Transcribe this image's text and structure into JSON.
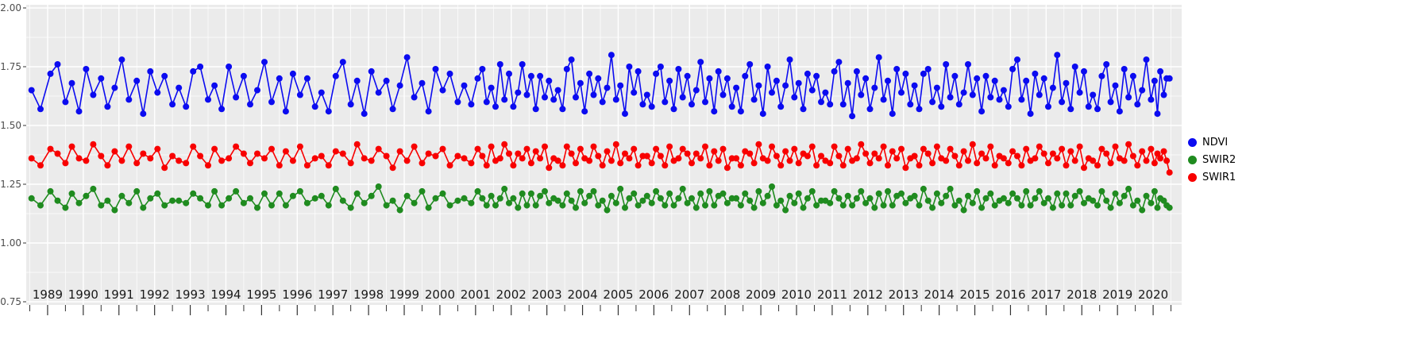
{
  "figure": {
    "background": "#ffffff",
    "panel_background": "#ebebeb",
    "grid_color": "#ffffff",
    "axis_label_color": "#4d4d4d",
    "x_label_color": "#1a1a1a",
    "tick_color": "#333333"
  },
  "legend": {
    "items": [
      {
        "label": "NDVI",
        "color": "#0b0bf0"
      },
      {
        "label": "SWIR2",
        "color": "#1f8b1f"
      },
      {
        "label": "SWIR1",
        "color": "#f80000"
      }
    ]
  },
  "chart_data": {
    "type": "line",
    "title": "",
    "xlabel": "",
    "ylabel": "",
    "grid": true,
    "legend_position": "right",
    "x_range": [
      1988.4,
      2020.8
    ],
    "y_range": [
      0.75,
      2.0
    ],
    "x_ticks": [
      1989,
      1990,
      1991,
      1992,
      1993,
      1994,
      1995,
      1996,
      1997,
      1998,
      1999,
      2000,
      2001,
      2002,
      2003,
      2004,
      2005,
      2006,
      2007,
      2008,
      2009,
      2010,
      2011,
      2012,
      2013,
      2014,
      2015,
      2016,
      2017,
      2018,
      2019,
      2020
    ],
    "y_ticks": [
      2.0,
      1.75,
      1.5,
      1.25,
      1.0,
      0.75
    ],
    "y_tick_labels": [
      "2.00",
      "1.75",
      "1.50",
      "1.25",
      "1.00",
      "0.75"
    ],
    "x": [
      1988.55,
      1988.8,
      1989.08,
      1989.28,
      1989.5,
      1989.68,
      1989.88,
      1990.08,
      1990.28,
      1990.5,
      1990.68,
      1990.88,
      1991.08,
      1991.28,
      1991.5,
      1991.68,
      1991.88,
      1992.08,
      1992.28,
      1992.5,
      1992.68,
      1992.88,
      1993.08,
      1993.28,
      1993.5,
      1993.68,
      1993.88,
      1994.08,
      1994.28,
      1994.5,
      1994.68,
      1994.88,
      1995.08,
      1995.28,
      1995.5,
      1995.68,
      1995.88,
      1996.08,
      1996.28,
      1996.5,
      1996.68,
      1996.88,
      1997.08,
      1997.28,
      1997.5,
      1997.68,
      1997.88,
      1998.08,
      1998.28,
      1998.5,
      1998.68,
      1998.88,
      1999.08,
      1999.28,
      1999.5,
      1999.68,
      1999.88,
      2000.08,
      2000.28,
      2000.5,
      2000.68,
      2000.88,
      2001.06,
      2001.19,
      2001.31,
      2001.44,
      2001.56,
      2001.69,
      2001.81,
      2001.94,
      2002.06,
      2002.19,
      2002.31,
      2002.44,
      2002.56,
      2002.69,
      2002.81,
      2002.94,
      2003.06,
      2003.19,
      2003.31,
      2003.44,
      2003.56,
      2003.69,
      2003.81,
      2003.94,
      2004.06,
      2004.19,
      2004.31,
      2004.44,
      2004.56,
      2004.69,
      2004.81,
      2004.94,
      2005.06,
      2005.19,
      2005.31,
      2005.44,
      2005.56,
      2005.69,
      2005.81,
      2005.94,
      2006.06,
      2006.19,
      2006.31,
      2006.44,
      2006.56,
      2006.69,
      2006.81,
      2006.94,
      2007.06,
      2007.19,
      2007.31,
      2007.44,
      2007.56,
      2007.69,
      2007.81,
      2007.94,
      2008.06,
      2008.19,
      2008.31,
      2008.44,
      2008.56,
      2008.69,
      2008.81,
      2008.94,
      2009.06,
      2009.19,
      2009.31,
      2009.44,
      2009.56,
      2009.69,
      2009.81,
      2009.94,
      2010.06,
      2010.19,
      2010.31,
      2010.44,
      2010.56,
      2010.69,
      2010.81,
      2010.94,
      2011.06,
      2011.19,
      2011.31,
      2011.44,
      2011.56,
      2011.69,
      2011.81,
      2011.94,
      2012.06,
      2012.19,
      2012.31,
      2012.44,
      2012.56,
      2012.69,
      2012.81,
      2012.94,
      2013.06,
      2013.19,
      2013.31,
      2013.44,
      2013.56,
      2013.69,
      2013.81,
      2013.94,
      2014.06,
      2014.19,
      2014.31,
      2014.44,
      2014.56,
      2014.69,
      2014.81,
      2014.94,
      2015.06,
      2015.19,
      2015.31,
      2015.44,
      2015.56,
      2015.69,
      2015.81,
      2015.94,
      2016.06,
      2016.19,
      2016.31,
      2016.44,
      2016.56,
      2016.69,
      2016.81,
      2016.94,
      2017.06,
      2017.19,
      2017.31,
      2017.44,
      2017.56,
      2017.69,
      2017.81,
      2017.94,
      2018.06,
      2018.19,
      2018.31,
      2018.44,
      2018.56,
      2018.69,
      2018.81,
      2018.94,
      2019.06,
      2019.19,
      2019.31,
      2019.44,
      2019.56,
      2019.69,
      2019.81,
      2019.94,
      2020.04,
      2020.12,
      2020.2,
      2020.3,
      2020.38,
      2020.46
    ],
    "series": [
      {
        "name": "NDVI",
        "color": "#0b0bf0",
        "values": [
          1.65,
          1.57,
          1.72,
          1.76,
          1.6,
          1.68,
          1.56,
          1.74,
          1.63,
          1.7,
          1.58,
          1.66,
          1.78,
          1.61,
          1.69,
          1.55,
          1.73,
          1.64,
          1.71,
          1.59,
          1.66,
          1.58,
          1.73,
          1.75,
          1.61,
          1.67,
          1.57,
          1.75,
          1.62,
          1.71,
          1.59,
          1.65,
          1.77,
          1.6,
          1.7,
          1.56,
          1.72,
          1.63,
          1.7,
          1.58,
          1.64,
          1.56,
          1.71,
          1.77,
          1.59,
          1.69,
          1.55,
          1.73,
          1.64,
          1.69,
          1.57,
          1.67,
          1.79,
          1.62,
          1.68,
          1.56,
          1.74,
          1.65,
          1.72,
          1.6,
          1.67,
          1.59,
          1.7,
          1.74,
          1.6,
          1.66,
          1.58,
          1.76,
          1.61,
          1.72,
          1.58,
          1.64,
          1.76,
          1.63,
          1.71,
          1.57,
          1.71,
          1.62,
          1.69,
          1.61,
          1.65,
          1.57,
          1.74,
          1.78,
          1.62,
          1.68,
          1.56,
          1.72,
          1.63,
          1.7,
          1.6,
          1.66,
          1.8,
          1.61,
          1.67,
          1.55,
          1.75,
          1.64,
          1.73,
          1.59,
          1.63,
          1.58,
          1.72,
          1.75,
          1.6,
          1.69,
          1.57,
          1.74,
          1.62,
          1.71,
          1.59,
          1.65,
          1.77,
          1.6,
          1.7,
          1.56,
          1.73,
          1.63,
          1.7,
          1.58,
          1.66,
          1.56,
          1.71,
          1.76,
          1.61,
          1.67,
          1.55,
          1.75,
          1.64,
          1.69,
          1.58,
          1.67,
          1.78,
          1.62,
          1.68,
          1.57,
          1.72,
          1.65,
          1.71,
          1.6,
          1.64,
          1.59,
          1.73,
          1.77,
          1.59,
          1.68,
          1.54,
          1.73,
          1.63,
          1.7,
          1.57,
          1.66,
          1.79,
          1.61,
          1.69,
          1.55,
          1.74,
          1.64,
          1.72,
          1.59,
          1.67,
          1.57,
          1.72,
          1.74,
          1.6,
          1.66,
          1.58,
          1.76,
          1.62,
          1.71,
          1.59,
          1.64,
          1.76,
          1.63,
          1.7,
          1.56,
          1.71,
          1.62,
          1.69,
          1.61,
          1.65,
          1.58,
          1.74,
          1.78,
          1.61,
          1.69,
          1.55,
          1.72,
          1.63,
          1.7,
          1.58,
          1.66,
          1.8,
          1.6,
          1.68,
          1.57,
          1.75,
          1.64,
          1.73,
          1.58,
          1.63,
          1.57,
          1.71,
          1.76,
          1.6,
          1.67,
          1.56,
          1.74,
          1.62,
          1.71,
          1.59,
          1.65,
          1.78,
          1.61,
          1.69,
          1.55,
          1.73,
          1.63,
          1.7,
          1.7
        ]
      },
      {
        "name": "SWIR2",
        "color": "#1f8b1f",
        "values": [
          1.19,
          1.16,
          1.22,
          1.18,
          1.15,
          1.21,
          1.17,
          1.2,
          1.23,
          1.16,
          1.18,
          1.14,
          1.2,
          1.17,
          1.22,
          1.15,
          1.19,
          1.21,
          1.16,
          1.18,
          1.18,
          1.17,
          1.21,
          1.19,
          1.16,
          1.22,
          1.16,
          1.19,
          1.22,
          1.17,
          1.19,
          1.15,
          1.21,
          1.16,
          1.21,
          1.16,
          1.2,
          1.22,
          1.17,
          1.19,
          1.2,
          1.16,
          1.23,
          1.18,
          1.15,
          1.21,
          1.17,
          1.2,
          1.24,
          1.16,
          1.18,
          1.14,
          1.2,
          1.17,
          1.22,
          1.15,
          1.19,
          1.21,
          1.16,
          1.18,
          1.19,
          1.17,
          1.22,
          1.19,
          1.16,
          1.2,
          1.16,
          1.19,
          1.23,
          1.17,
          1.19,
          1.15,
          1.21,
          1.16,
          1.21,
          1.16,
          1.2,
          1.22,
          1.17,
          1.19,
          1.18,
          1.16,
          1.21,
          1.18,
          1.15,
          1.22,
          1.17,
          1.2,
          1.22,
          1.16,
          1.18,
          1.14,
          1.2,
          1.17,
          1.23,
          1.15,
          1.19,
          1.21,
          1.16,
          1.18,
          1.2,
          1.17,
          1.22,
          1.19,
          1.16,
          1.21,
          1.16,
          1.19,
          1.23,
          1.17,
          1.19,
          1.15,
          1.21,
          1.16,
          1.22,
          1.16,
          1.2,
          1.21,
          1.17,
          1.19,
          1.19,
          1.16,
          1.21,
          1.18,
          1.15,
          1.22,
          1.17,
          1.2,
          1.24,
          1.16,
          1.18,
          1.14,
          1.2,
          1.17,
          1.21,
          1.15,
          1.19,
          1.22,
          1.16,
          1.18,
          1.18,
          1.17,
          1.22,
          1.19,
          1.16,
          1.2,
          1.16,
          1.19,
          1.22,
          1.17,
          1.19,
          1.15,
          1.21,
          1.16,
          1.22,
          1.16,
          1.2,
          1.21,
          1.17,
          1.19,
          1.2,
          1.16,
          1.23,
          1.18,
          1.15,
          1.21,
          1.17,
          1.2,
          1.23,
          1.16,
          1.18,
          1.14,
          1.2,
          1.17,
          1.22,
          1.15,
          1.19,
          1.21,
          1.16,
          1.18,
          1.19,
          1.17,
          1.21,
          1.19,
          1.16,
          1.22,
          1.16,
          1.19,
          1.22,
          1.17,
          1.19,
          1.15,
          1.21,
          1.16,
          1.21,
          1.16,
          1.2,
          1.22,
          1.17,
          1.19,
          1.18,
          1.16,
          1.22,
          1.18,
          1.15,
          1.21,
          1.17,
          1.2,
          1.23,
          1.16,
          1.18,
          1.14,
          1.2,
          1.17,
          1.22,
          1.15,
          1.19,
          1.18,
          1.16,
          1.15
        ]
      },
      {
        "name": "SWIR1",
        "color": "#f80000",
        "values": [
          1.36,
          1.33,
          1.4,
          1.38,
          1.34,
          1.41,
          1.36,
          1.35,
          1.42,
          1.37,
          1.33,
          1.39,
          1.35,
          1.41,
          1.34,
          1.38,
          1.36,
          1.4,
          1.32,
          1.37,
          1.35,
          1.34,
          1.41,
          1.37,
          1.33,
          1.4,
          1.35,
          1.36,
          1.41,
          1.38,
          1.34,
          1.38,
          1.36,
          1.4,
          1.33,
          1.39,
          1.35,
          1.41,
          1.33,
          1.36,
          1.37,
          1.33,
          1.39,
          1.38,
          1.34,
          1.42,
          1.36,
          1.35,
          1.4,
          1.37,
          1.32,
          1.39,
          1.35,
          1.41,
          1.34,
          1.38,
          1.37,
          1.4,
          1.33,
          1.37,
          1.36,
          1.34,
          1.4,
          1.37,
          1.33,
          1.41,
          1.35,
          1.36,
          1.42,
          1.38,
          1.33,
          1.38,
          1.36,
          1.4,
          1.34,
          1.39,
          1.36,
          1.41,
          1.32,
          1.36,
          1.35,
          1.33,
          1.41,
          1.38,
          1.34,
          1.4,
          1.36,
          1.35,
          1.41,
          1.37,
          1.33,
          1.39,
          1.35,
          1.42,
          1.34,
          1.38,
          1.36,
          1.4,
          1.33,
          1.37,
          1.37,
          1.34,
          1.4,
          1.37,
          1.33,
          1.41,
          1.35,
          1.36,
          1.4,
          1.38,
          1.34,
          1.38,
          1.36,
          1.41,
          1.33,
          1.39,
          1.35,
          1.4,
          1.32,
          1.36,
          1.36,
          1.33,
          1.39,
          1.38,
          1.34,
          1.42,
          1.36,
          1.35,
          1.41,
          1.37,
          1.33,
          1.39,
          1.35,
          1.4,
          1.34,
          1.38,
          1.37,
          1.41,
          1.33,
          1.37,
          1.35,
          1.34,
          1.41,
          1.37,
          1.33,
          1.4,
          1.35,
          1.36,
          1.42,
          1.38,
          1.34,
          1.38,
          1.36,
          1.41,
          1.33,
          1.39,
          1.36,
          1.4,
          1.32,
          1.36,
          1.37,
          1.33,
          1.4,
          1.38,
          1.34,
          1.41,
          1.36,
          1.35,
          1.4,
          1.37,
          1.33,
          1.39,
          1.35,
          1.42,
          1.34,
          1.38,
          1.36,
          1.41,
          1.33,
          1.37,
          1.36,
          1.34,
          1.39,
          1.37,
          1.33,
          1.4,
          1.35,
          1.36,
          1.41,
          1.38,
          1.34,
          1.38,
          1.36,
          1.4,
          1.33,
          1.39,
          1.35,
          1.41,
          1.32,
          1.36,
          1.35,
          1.33,
          1.4,
          1.38,
          1.34,
          1.41,
          1.36,
          1.35,
          1.42,
          1.37,
          1.33,
          1.39,
          1.35,
          1.4,
          1.34,
          1.38,
          1.36,
          1.39,
          1.35,
          1.3
        ]
      }
    ]
  }
}
